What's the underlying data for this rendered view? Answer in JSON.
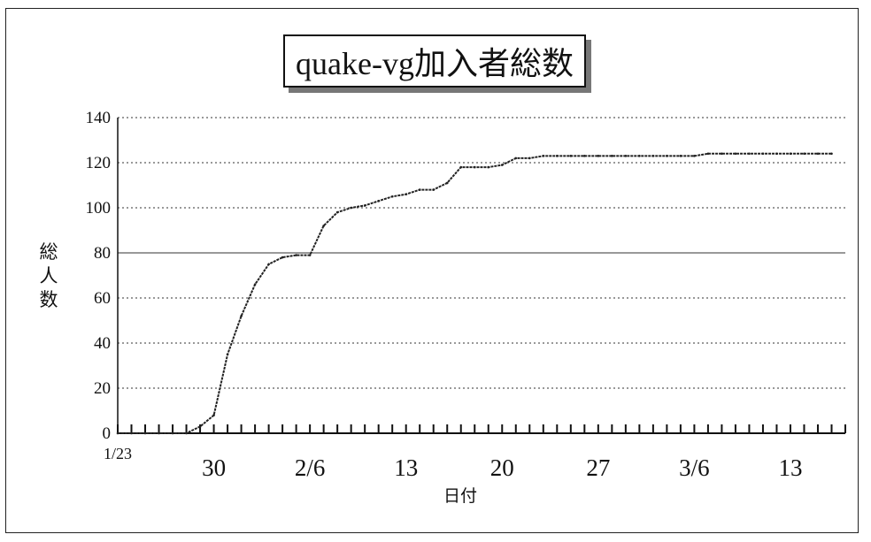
{
  "chart_data": {
    "type": "line",
    "title": "quake-vg加入者総数",
    "ylabel_chars": [
      "総",
      "人",
      "数"
    ],
    "xlabel": "日付",
    "ylim": [
      0,
      140
    ],
    "y_ticks": [
      "0",
      "20",
      "40",
      "60",
      "80",
      "100",
      "120",
      "140"
    ],
    "x_ticks": [
      {
        "day": 0,
        "label": "1/23"
      },
      {
        "day": 7,
        "label": "30"
      },
      {
        "day": 14,
        "label": "2/6"
      },
      {
        "day": 21,
        "label": "13"
      },
      {
        "day": 28,
        "label": "20"
      },
      {
        "day": 35,
        "label": "27"
      },
      {
        "day": 42,
        "label": "3/6"
      },
      {
        "day": 49,
        "label": "13"
      }
    ],
    "grid": "horizontal dotted",
    "series": [
      {
        "name": "",
        "points": [
          [
            0,
            0
          ],
          [
            1,
            0
          ],
          [
            2,
            0
          ],
          [
            3,
            0
          ],
          [
            4,
            0
          ],
          [
            5,
            0
          ],
          [
            6,
            3
          ],
          [
            7,
            8
          ],
          [
            8,
            35
          ],
          [
            9,
            52
          ],
          [
            10,
            66
          ],
          [
            11,
            75
          ],
          [
            12,
            78
          ],
          [
            13,
            79
          ],
          [
            14,
            79
          ],
          [
            15,
            92
          ],
          [
            16,
            98
          ],
          [
            17,
            100
          ],
          [
            18,
            101
          ],
          [
            19,
            103
          ],
          [
            20,
            105
          ],
          [
            21,
            106
          ],
          [
            22,
            108
          ],
          [
            23,
            108
          ],
          [
            24,
            111
          ],
          [
            25,
            118
          ],
          [
            26,
            118
          ],
          [
            27,
            118
          ],
          [
            28,
            119
          ],
          [
            29,
            122
          ],
          [
            30,
            122
          ],
          [
            31,
            123
          ],
          [
            32,
            123
          ],
          [
            33,
            123
          ],
          [
            34,
            123
          ],
          [
            35,
            123
          ],
          [
            36,
            123
          ],
          [
            37,
            123
          ],
          [
            38,
            123
          ],
          [
            39,
            123
          ],
          [
            40,
            123
          ],
          [
            41,
            123
          ],
          [
            42,
            123
          ],
          [
            43,
            124
          ],
          [
            44,
            124
          ],
          [
            45,
            124
          ],
          [
            46,
            124
          ],
          [
            47,
            124
          ],
          [
            48,
            124
          ],
          [
            49,
            124
          ],
          [
            50,
            124
          ],
          [
            51,
            124
          ],
          [
            52,
            124
          ]
        ]
      }
    ]
  }
}
